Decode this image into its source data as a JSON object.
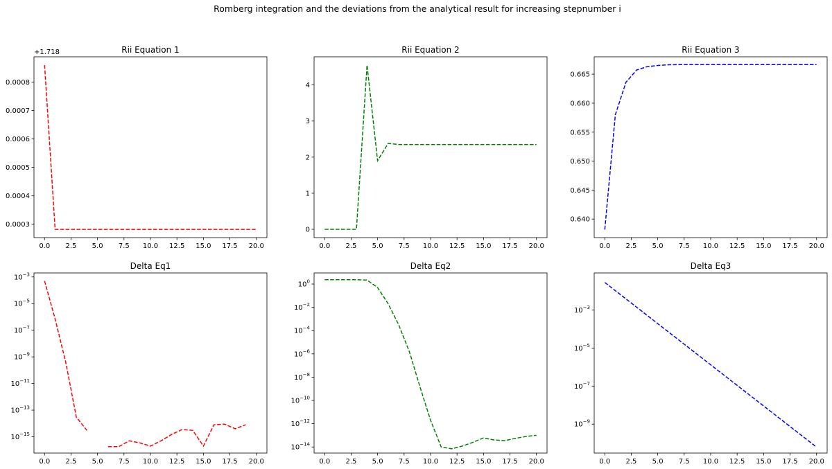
{
  "figure": {
    "suptitle": "Romberg integration and the deviations from the analytical result for increasing stepnumber i"
  },
  "chart_data": [
    {
      "id": "rii1",
      "type": "line",
      "title": "Rii Equation 1",
      "color": "#ff0000",
      "linestyle": "dashed",
      "offset_label": "+1.718",
      "x": [
        0,
        1,
        2,
        3,
        4,
        5,
        6,
        7,
        8,
        9,
        10,
        11,
        12,
        13,
        14,
        15,
        16,
        17,
        18,
        19,
        20
      ],
      "y": [
        0.00086,
        0.000282,
        0.000282,
        0.000282,
        0.000282,
        0.000282,
        0.000282,
        0.000282,
        0.000282,
        0.000282,
        0.000282,
        0.000282,
        0.000282,
        0.000282,
        0.000282,
        0.000282,
        0.000282,
        0.000282,
        0.000282,
        0.000282,
        0.000282
      ],
      "xlim": [
        -1,
        21
      ],
      "ylim": [
        0.000253,
        0.000889
      ],
      "xticks": [
        0,
        2.5,
        5,
        7.5,
        10,
        12.5,
        15,
        17.5,
        20
      ],
      "xtick_labels": [
        "0.0",
        "2.5",
        "5.0",
        "7.5",
        "10.0",
        "12.5",
        "15.0",
        "17.5",
        "20.0"
      ],
      "yscale": "linear",
      "yticks": [
        0.0003,
        0.0004,
        0.0005,
        0.0006,
        0.0007,
        0.0008
      ],
      "ytick_labels": [
        "0.0003",
        "0.0004",
        "0.0005",
        "0.0006",
        "0.0007",
        "0.0008"
      ]
    },
    {
      "id": "rii2",
      "type": "line",
      "title": "Rii Equation 2",
      "color": "#008000",
      "linestyle": "dashed",
      "x": [
        0,
        1,
        2,
        3,
        4,
        5,
        6,
        7,
        8,
        9,
        10,
        11,
        12,
        13,
        14,
        15,
        16,
        17,
        18,
        19,
        20
      ],
      "y": [
        0,
        0,
        0,
        0,
        4.55,
        1.9,
        2.38,
        2.35,
        2.35,
        2.35,
        2.35,
        2.35,
        2.35,
        2.35,
        2.35,
        2.35,
        2.35,
        2.35,
        2.35,
        2.35,
        2.35
      ],
      "xlim": [
        -1,
        21
      ],
      "ylim": [
        -0.23,
        4.78
      ],
      "xticks": [
        0,
        2.5,
        5,
        7.5,
        10,
        12.5,
        15,
        17.5,
        20
      ],
      "xtick_labels": [
        "0.0",
        "2.5",
        "5.0",
        "7.5",
        "10.0",
        "12.5",
        "15.0",
        "17.5",
        "20.0"
      ],
      "yscale": "linear",
      "yticks": [
        0,
        1,
        2,
        3,
        4
      ],
      "ytick_labels": [
        "0",
        "1",
        "2",
        "3",
        "4"
      ]
    },
    {
      "id": "rii3",
      "type": "line",
      "title": "Rii Equation 3",
      "color": "#0000ff",
      "linestyle": "dashed",
      "x": [
        0,
        1,
        2,
        3,
        4,
        5,
        6,
        7,
        8,
        9,
        10,
        11,
        12,
        13,
        14,
        15,
        16,
        17,
        18,
        19,
        20
      ],
      "y": [
        0.6382,
        0.658,
        0.6636,
        0.6657,
        0.6663,
        0.6665,
        0.66662,
        0.66665,
        0.66666,
        0.66666,
        0.66666,
        0.66666,
        0.66666,
        0.66666,
        0.66666,
        0.66666,
        0.66666,
        0.66666,
        0.66666,
        0.66666,
        0.66666
      ],
      "xlim": [
        -1,
        21
      ],
      "ylim": [
        0.6368,
        0.668
      ],
      "xticks": [
        0,
        2.5,
        5,
        7.5,
        10,
        12.5,
        15,
        17.5,
        20
      ],
      "xtick_labels": [
        "0.0",
        "2.5",
        "5.0",
        "7.5",
        "10.0",
        "12.5",
        "15.0",
        "17.5",
        "20.0"
      ],
      "yscale": "linear",
      "yticks": [
        0.64,
        0.645,
        0.65,
        0.655,
        0.66,
        0.665
      ],
      "ytick_labels": [
        "0.640",
        "0.645",
        "0.650",
        "0.655",
        "0.660",
        "0.665"
      ]
    },
    {
      "id": "delta1",
      "type": "line",
      "title": "Delta Eq1",
      "color": "#ff0000",
      "linestyle": "dashed",
      "x": [
        0,
        1,
        2,
        3,
        4,
        5,
        6,
        7,
        8,
        9,
        10,
        11,
        12,
        13,
        14,
        15,
        16,
        17,
        18,
        19,
        20
      ],
      "y": [
        0.0005,
        7e-07,
        4e-10,
        3e-14,
        3e-15,
        null,
        1.8e-16,
        1.8e-16,
        5e-16,
        3.5e-16,
        2e-16,
        5e-16,
        1.5e-15,
        3.5e-15,
        3e-15,
        2e-16,
        8e-15,
        9e-15,
        4e-15,
        8e-15,
        null
      ],
      "xlim": [
        -1,
        21
      ],
      "ylim": [
        6e-17,
        0.002
      ],
      "xticks": [
        0,
        2.5,
        5,
        7.5,
        10,
        12.5,
        15,
        17.5,
        20
      ],
      "xtick_labels": [
        "0.0",
        "2.5",
        "5.0",
        "7.5",
        "10.0",
        "12.5",
        "15.0",
        "17.5",
        "20.0"
      ],
      "yscale": "log",
      "yticks": [
        1e-15,
        1e-13,
        1e-11,
        1e-09,
        1e-07,
        1e-05,
        0.001
      ],
      "ytick_base": [
        "10",
        "10",
        "10",
        "10",
        "10",
        "10",
        "10"
      ],
      "ytick_exp": [
        "−15",
        "−13",
        "−11",
        "−9",
        "−7",
        "−5",
        "−3"
      ]
    },
    {
      "id": "delta2",
      "type": "line",
      "title": "Delta Eq2",
      "color": "#008000",
      "linestyle": "dashed",
      "x": [
        0,
        1,
        2,
        3,
        4,
        5,
        6,
        7,
        8,
        9,
        10,
        11,
        12,
        13,
        14,
        15,
        16,
        17,
        18,
        19,
        20
      ],
      "y": [
        2.35,
        2.35,
        2.35,
        2.35,
        2.2,
        0.5,
        0.02,
        0.0003,
        1.5e-06,
        1.5e-09,
        2e-12,
        1e-14,
        7e-15,
        1.2e-14,
        2.5e-14,
        6e-14,
        4e-14,
        3.5e-14,
        5.5e-14,
        8e-14,
        1e-13
      ],
      "xlim": [
        -1,
        21
      ],
      "ylim": [
        3e-15,
        9
      ],
      "xticks": [
        0,
        2.5,
        5,
        7.5,
        10,
        12.5,
        15,
        17.5,
        20
      ],
      "xtick_labels": [
        "0.0",
        "2.5",
        "5.0",
        "7.5",
        "10.0",
        "12.5",
        "15.0",
        "17.5",
        "20.0"
      ],
      "yscale": "log",
      "yticks": [
        1e-14,
        1e-12,
        1e-10,
        1e-08,
        1e-06,
        0.0001,
        0.01,
        1
      ],
      "ytick_base": [
        "10",
        "10",
        "10",
        "10",
        "10",
        "10",
        "10",
        "10"
      ],
      "ytick_exp": [
        "−14",
        "−12",
        "−10",
        "−8",
        "−6",
        "−4",
        "−2",
        "0"
      ]
    },
    {
      "id": "delta3",
      "type": "line",
      "title": "Delta Eq3",
      "color": "#0000ff",
      "linestyle": "dashed",
      "x": [
        0,
        20
      ],
      "y": [
        0.0285,
        6.2e-11
      ],
      "xlim": [
        -1,
        21
      ],
      "ylim": [
        3e-11,
        0.09
      ],
      "xticks": [
        0,
        2.5,
        5,
        7.5,
        10,
        12.5,
        15,
        17.5,
        20
      ],
      "xtick_labels": [
        "0.0",
        "2.5",
        "5.0",
        "7.5",
        "10.0",
        "12.5",
        "15.0",
        "17.5",
        "20.0"
      ],
      "yscale": "log",
      "yticks": [
        1e-09,
        1e-07,
        1e-05,
        0.001
      ],
      "ytick_base": [
        "10",
        "10",
        "10",
        "10"
      ],
      "ytick_exp": [
        "−9",
        "−7",
        "−5",
        "−3"
      ]
    }
  ]
}
